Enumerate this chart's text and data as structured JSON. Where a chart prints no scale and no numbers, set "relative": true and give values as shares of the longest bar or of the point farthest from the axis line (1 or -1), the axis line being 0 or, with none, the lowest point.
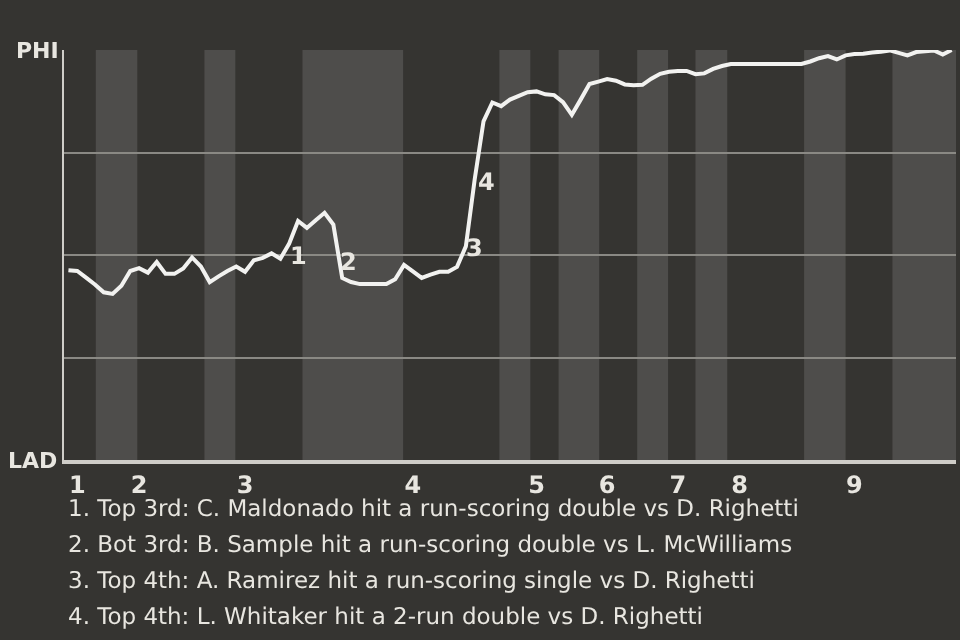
{
  "chart_data": {
    "type": "line",
    "relative": true,
    "categories": [
      null,
      "1",
      null,
      null,
      null,
      null,
      null,
      null,
      "2",
      null,
      null,
      null,
      null,
      null,
      null,
      null,
      null,
      null,
      null,
      null,
      "3",
      null,
      null,
      null,
      null,
      null,
      null,
      null,
      null,
      null,
      null,
      null,
      null,
      null,
      null,
      null,
      null,
      null,
      null,
      "4",
      null,
      null,
      null,
      null,
      null,
      null,
      null,
      null,
      null,
      null,
      null,
      null,
      null,
      "5",
      null,
      null,
      null,
      null,
      null,
      null,
      null,
      "6",
      null,
      null,
      null,
      null,
      null,
      null,
      null,
      "7",
      null,
      null,
      null,
      null,
      null,
      null,
      "8",
      null,
      null,
      null,
      null,
      null,
      null,
      null,
      null,
      null,
      null,
      null,
      null,
      "9",
      null,
      null,
      null,
      null,
      null,
      null,
      null,
      null,
      null,
      null,
      null
    ],
    "series": [
      {
        "color": "#f2f2f0",
        "values": [
          0.463,
          0.461,
          0.445,
          0.428,
          0.409,
          0.405,
          0.425,
          0.461,
          0.468,
          0.457,
          0.483,
          0.454,
          0.454,
          0.467,
          0.494,
          0.472,
          0.434,
          0.448,
          0.461,
          0.472,
          0.459,
          0.487,
          0.493,
          0.504,
          0.491,
          0.528,
          0.583,
          0.566,
          0.585,
          0.603,
          0.574,
          0.444,
          0.434,
          0.429,
          0.429,
          0.429,
          0.429,
          0.441,
          0.476,
          0.46,
          0.444,
          0.452,
          0.459,
          0.459,
          0.471,
          0.521,
          0.684,
          0.826,
          0.872,
          0.863,
          0.879,
          0.888,
          0.897,
          0.899,
          0.892,
          0.89,
          0.873,
          0.842,
          0.879,
          0.917,
          0.923,
          0.929,
          0.925,
          0.916,
          0.914,
          0.915,
          0.93,
          0.942,
          0.947,
          0.949,
          0.949,
          0.941,
          0.943,
          0.954,
          0.961,
          0.966,
          0.966,
          0.966,
          0.966,
          0.966,
          0.966,
          0.966,
          0.966,
          0.966,
          0.972,
          0.98,
          0.985,
          0.977,
          0.987,
          0.99,
          0.991,
          0.994,
          0.996,
          0.999,
          0.993,
          0.987,
          0.995,
          0.997,
          0.999,
          0.989,
          1
        ]
      }
    ],
    "grid": "y",
    "marker": "none",
    "line_style": "solid",
    "annotations": [
      "PHI",
      "LAD",
      "1",
      "2",
      "3",
      "4",
      "1. Top 3rd: C. Maldonado hit a run-scoring double vs D. Righetti",
      "2. Bot 3rd: B. Sample hit a run-scoring double vs L. McWilliams",
      "3. Top 4th: A. Ramirez hit a run-scoring single vs D. Righetti",
      "4. Top 4th: L. Whitaker hit a 2-run double vs D. Righetti"
    ]
  }
}
